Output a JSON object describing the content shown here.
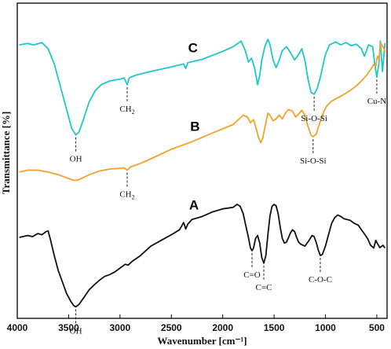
{
  "chart_data": {
    "type": "line",
    "xlabel": "Wavenumber [cm⁻¹]",
    "ylabel": "Transmittance [%]",
    "xlim": [
      4000,
      400
    ],
    "x_reversed": true,
    "x_ticks": [
      "4000",
      "3500",
      "3000",
      "2500",
      "2000",
      "1500",
      "1000",
      "500"
    ],
    "y_ticks": [],
    "grid": false,
    "legend": "none",
    "series": [
      {
        "name": "C",
        "color": "#1fc7c7",
        "points": [
          [
            3980,
            71
          ],
          [
            3900,
            71.4
          ],
          [
            3840,
            71
          ],
          [
            3760,
            71.6
          ],
          [
            3700,
            70
          ],
          [
            3640,
            66
          ],
          [
            3580,
            60
          ],
          [
            3520,
            54
          ],
          [
            3470,
            49
          ],
          [
            3430,
            47.3
          ],
          [
            3400,
            48
          ],
          [
            3360,
            51
          ],
          [
            3300,
            56
          ],
          [
            3240,
            59
          ],
          [
            3180,
            60.6
          ],
          [
            3100,
            61.5
          ],
          [
            3000,
            62
          ],
          [
            2960,
            62.3
          ],
          [
            2930,
            60.5
          ],
          [
            2910,
            62.3
          ],
          [
            2850,
            63
          ],
          [
            2700,
            64
          ],
          [
            2500,
            65.2
          ],
          [
            2380,
            66
          ],
          [
            2360,
            64.8
          ],
          [
            2340,
            66.3
          ],
          [
            2200,
            67.2
          ],
          [
            2000,
            69.3
          ],
          [
            1900,
            70.5
          ],
          [
            1820,
            72
          ],
          [
            1780,
            69.5
          ],
          [
            1750,
            66.5
          ],
          [
            1720,
            67.5
          ],
          [
            1690,
            65
          ],
          [
            1660,
            60.5
          ],
          [
            1640,
            63
          ],
          [
            1620,
            67
          ],
          [
            1590,
            70.5
          ],
          [
            1560,
            72.5
          ],
          [
            1540,
            71
          ],
          [
            1510,
            67
          ],
          [
            1480,
            65
          ],
          [
            1450,
            67
          ],
          [
            1420,
            69.5
          ],
          [
            1380,
            70.5
          ],
          [
            1340,
            69
          ],
          [
            1300,
            67
          ],
          [
            1260,
            68.5
          ],
          [
            1230,
            70
          ],
          [
            1200,
            67
          ],
          [
            1170,
            62
          ],
          [
            1140,
            58.5
          ],
          [
            1110,
            58
          ],
          [
            1080,
            59.5
          ],
          [
            1050,
            62.5
          ],
          [
            1000,
            68.5
          ],
          [
            960,
            71
          ],
          [
            900,
            71.8
          ],
          [
            850,
            71
          ],
          [
            800,
            71.6
          ],
          [
            750,
            70.8
          ],
          [
            700,
            71.2
          ],
          [
            650,
            70
          ],
          [
            620,
            68
          ],
          [
            580,
            71
          ],
          [
            540,
            70.5
          ],
          [
            520,
            66
          ],
          [
            500,
            62.5
          ],
          [
            480,
            66
          ],
          [
            465,
            72
          ],
          [
            445,
            64
          ],
          [
            420,
            71.5
          ]
        ]
      },
      {
        "name": "B",
        "color": "#f0a22a",
        "points": [
          [
            3980,
            37.5
          ],
          [
            3900,
            38
          ],
          [
            3800,
            38
          ],
          [
            3700,
            37.5
          ],
          [
            3600,
            36.8
          ],
          [
            3500,
            35.8
          ],
          [
            3450,
            35.3
          ],
          [
            3400,
            35.5
          ],
          [
            3300,
            36.8
          ],
          [
            3200,
            37.8
          ],
          [
            3100,
            38.3
          ],
          [
            3000,
            38.5
          ],
          [
            2960,
            38.6
          ],
          [
            2930,
            38
          ],
          [
            2900,
            38.8
          ],
          [
            2800,
            39.8
          ],
          [
            2700,
            41
          ],
          [
            2500,
            43.5
          ],
          [
            2300,
            45.5
          ],
          [
            2100,
            47.8
          ],
          [
            1900,
            50
          ],
          [
            1800,
            52.5
          ],
          [
            1760,
            52
          ],
          [
            1730,
            50.5
          ],
          [
            1700,
            51.3
          ],
          [
            1680,
            49.5
          ],
          [
            1650,
            46.5
          ],
          [
            1630,
            45.2
          ],
          [
            1610,
            46.5
          ],
          [
            1580,
            50.5
          ],
          [
            1560,
            53
          ],
          [
            1540,
            52.5
          ],
          [
            1510,
            51
          ],
          [
            1480,
            51.5
          ],
          [
            1450,
            52.5
          ],
          [
            1420,
            51.5
          ],
          [
            1390,
            53
          ],
          [
            1360,
            54
          ],
          [
            1320,
            53.5
          ],
          [
            1290,
            52
          ],
          [
            1260,
            52.8
          ],
          [
            1230,
            53.8
          ],
          [
            1200,
            52.5
          ],
          [
            1170,
            49.5
          ],
          [
            1140,
            47.2
          ],
          [
            1120,
            46.8
          ],
          [
            1090,
            47.5
          ],
          [
            1060,
            50
          ],
          [
            1020,
            53.2
          ],
          [
            990,
            54.8
          ],
          [
            950,
            56
          ],
          [
            900,
            56.8
          ],
          [
            850,
            57.5
          ],
          [
            800,
            58.3
          ],
          [
            750,
            59.2
          ],
          [
            700,
            60.2
          ],
          [
            650,
            61.5
          ],
          [
            600,
            63
          ],
          [
            560,
            64.5
          ],
          [
            530,
            65.8
          ],
          [
            510,
            65.3
          ],
          [
            495,
            68
          ],
          [
            480,
            67.3
          ],
          [
            460,
            71.5
          ],
          [
            430,
            70
          ],
          [
            420,
            69
          ]
        ]
      },
      {
        "name": "A",
        "color": "#111111",
        "points": [
          [
            3980,
            20.3
          ],
          [
            3900,
            20.8
          ],
          [
            3850,
            20.5
          ],
          [
            3800,
            21.3
          ],
          [
            3760,
            21
          ],
          [
            3720,
            21.8
          ],
          [
            3700,
            22
          ],
          [
            3680,
            20
          ],
          [
            3640,
            15.5
          ],
          [
            3600,
            11.5
          ],
          [
            3560,
            8.5
          ],
          [
            3520,
            5.5
          ],
          [
            3480,
            3.5
          ],
          [
            3450,
            2.3
          ],
          [
            3430,
            2
          ],
          [
            3400,
            2.6
          ],
          [
            3350,
            4.5
          ],
          [
            3300,
            6.5
          ],
          [
            3250,
            7.8
          ],
          [
            3200,
            9
          ],
          [
            3150,
            10
          ],
          [
            3100,
            10.5
          ],
          [
            3050,
            11.2
          ],
          [
            3000,
            12.2
          ],
          [
            2950,
            13.2
          ],
          [
            2920,
            13
          ],
          [
            2880,
            14
          ],
          [
            2800,
            15.5
          ],
          [
            2700,
            18
          ],
          [
            2600,
            19.5
          ],
          [
            2500,
            21
          ],
          [
            2420,
            22.3
          ],
          [
            2380,
            24.2
          ],
          [
            2360,
            22.5
          ],
          [
            2340,
            23.8
          ],
          [
            2300,
            25
          ],
          [
            2200,
            25.8
          ],
          [
            2100,
            27
          ],
          [
            2000,
            27.8
          ],
          [
            1900,
            28.2
          ],
          [
            1860,
            29
          ],
          [
            1830,
            28.5
          ],
          [
            1800,
            26.5
          ],
          [
            1780,
            24
          ],
          [
            1750,
            20.3
          ],
          [
            1730,
            17.5
          ],
          [
            1715,
            16.8
          ],
          [
            1700,
            17.5
          ],
          [
            1680,
            20
          ],
          [
            1660,
            20.8
          ],
          [
            1640,
            18.8
          ],
          [
            1620,
            15
          ],
          [
            1600,
            13.5
          ],
          [
            1580,
            15.5
          ],
          [
            1560,
            21
          ],
          [
            1540,
            26
          ],
          [
            1520,
            28.5
          ],
          [
            1500,
            29
          ],
          [
            1480,
            28.6
          ],
          [
            1460,
            26.5
          ],
          [
            1440,
            23
          ],
          [
            1420,
            20
          ],
          [
            1400,
            18.8
          ],
          [
            1380,
            19
          ],
          [
            1360,
            20.2
          ],
          [
            1340,
            21.5
          ],
          [
            1320,
            22.3
          ],
          [
            1300,
            21.8
          ],
          [
            1280,
            20.2
          ],
          [
            1260,
            19
          ],
          [
            1240,
            18.5
          ],
          [
            1200,
            18
          ],
          [
            1160,
            19.5
          ],
          [
            1130,
            20.8
          ],
          [
            1110,
            20.5
          ],
          [
            1090,
            19
          ],
          [
            1070,
            17
          ],
          [
            1050,
            15.5
          ],
          [
            1030,
            15.8
          ],
          [
            1000,
            18
          ],
          [
            970,
            21
          ],
          [
            940,
            24
          ],
          [
            910,
            25.5
          ],
          [
            880,
            26.2
          ],
          [
            850,
            25.8
          ],
          [
            820,
            25.2
          ],
          [
            790,
            25
          ],
          [
            760,
            24.8
          ],
          [
            720,
            24
          ],
          [
            680,
            23.5
          ],
          [
            650,
            22.3
          ],
          [
            620,
            21.2
          ],
          [
            590,
            20
          ],
          [
            560,
            18.2
          ],
          [
            530,
            17.5
          ],
          [
            510,
            19.5
          ],
          [
            490,
            18.5
          ],
          [
            470,
            17.6
          ],
          [
            440,
            18.2
          ],
          [
            420,
            17.5
          ]
        ]
      }
    ],
    "annotations": [
      {
        "text": "OH",
        "series": "C",
        "wn": 3430
      },
      {
        "text": "CH",
        "sub": "2",
        "series": "C",
        "wn": 2930
      },
      {
        "text": "Si-O-Si",
        "series": "C",
        "wn": 1110
      },
      {
        "text": "Cu-N",
        "series": "C",
        "wn": 500
      },
      {
        "text": "CH",
        "sub": "2",
        "series": "B",
        "wn": 2930
      },
      {
        "text": "Si-O-Si",
        "series": "B",
        "wn": 1120
      },
      {
        "text": "OH",
        "series": "A",
        "wn": 3430
      },
      {
        "text": "C=O",
        "series": "A",
        "wn": 1715
      },
      {
        "text": "C=C",
        "series": "A",
        "wn": 1600
      },
      {
        "text": "C-O-C",
        "series": "A",
        "wn": 1050
      }
    ],
    "series_labels": [
      {
        "text": "C",
        "series": "C",
        "wn": 2290
      },
      {
        "text": "B",
        "series": "B",
        "wn": 2270
      },
      {
        "text": "A",
        "series": "A",
        "wn": 2280
      }
    ]
  }
}
